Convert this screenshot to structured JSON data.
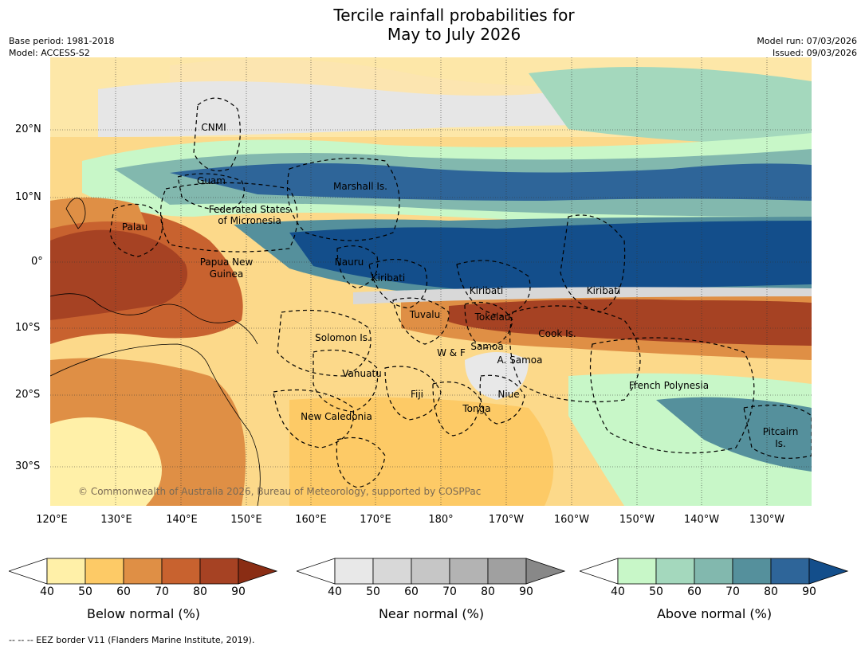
{
  "title": {
    "line1": "Tercile rainfall probabilities for",
    "line2": "May to July 2026"
  },
  "meta": {
    "base_period": "Base period: 1981-2018",
    "model": "Model: ACCESS-S2",
    "model_run": "Model run: 07/03/2026",
    "issued": "Issued: 09/03/2026"
  },
  "axes": {
    "lat_labels": [
      "20°N",
      "10°N",
      "0°",
      "10°S",
      "20°S",
      "30°S"
    ],
    "lon_labels": [
      "120°E",
      "130°E",
      "140°E",
      "150°E",
      "160°E",
      "170°E",
      "180°",
      "170°W",
      "160°W",
      "150°W",
      "140°W",
      "130°W"
    ]
  },
  "regions": [
    "CNMI",
    "Guam",
    "Marshall Is.",
    "Federated States",
    "of Micronesia",
    "Palau",
    "Papua New",
    "Guinea",
    "Nauru",
    "Kiribati",
    "Kiribati",
    "Kiribati",
    "Tuvalu",
    "Tokelau",
    "Cook Is.",
    "Solomon Is.",
    "W & F",
    "Samoa",
    "A. Samoa",
    "Vanuatu",
    "Fiji",
    "Niue",
    "French Polynesia",
    "Tonga",
    "New Caledonia",
    "Pitcairn",
    "Is."
  ],
  "copyright": "© Commonwealth of Australia 2026, Bureau of Meteorology, supported by COSPPac",
  "colorbars": [
    {
      "title": "Below normal (%)",
      "ticks": [
        "40",
        "50",
        "60",
        "70",
        "80",
        "90"
      ],
      "colors": [
        "#fff0a8",
        "#fdca66",
        "#df8f45",
        "#c8622f",
        "#a64223",
        "#8a2d14"
      ]
    },
    {
      "title": "Near normal (%)",
      "ticks": [
        "40",
        "50",
        "60",
        "70",
        "80",
        "90"
      ],
      "colors": [
        "#e8e8e8",
        "#d8d8d8",
        "#c6c6c6",
        "#b3b3b3",
        "#a0a0a0",
        "#888888"
      ]
    },
    {
      "title": "Above normal (%)",
      "ticks": [
        "40",
        "50",
        "60",
        "70",
        "80",
        "90"
      ],
      "colors": [
        "#c8f7c8",
        "#a4d8bd",
        "#82b8ae",
        "#55909c",
        "#2e6599",
        "#134e8b"
      ]
    }
  ],
  "footer": "--  --  -- EEZ border V11 (Flanders Marine Institute, 2019)."
}
